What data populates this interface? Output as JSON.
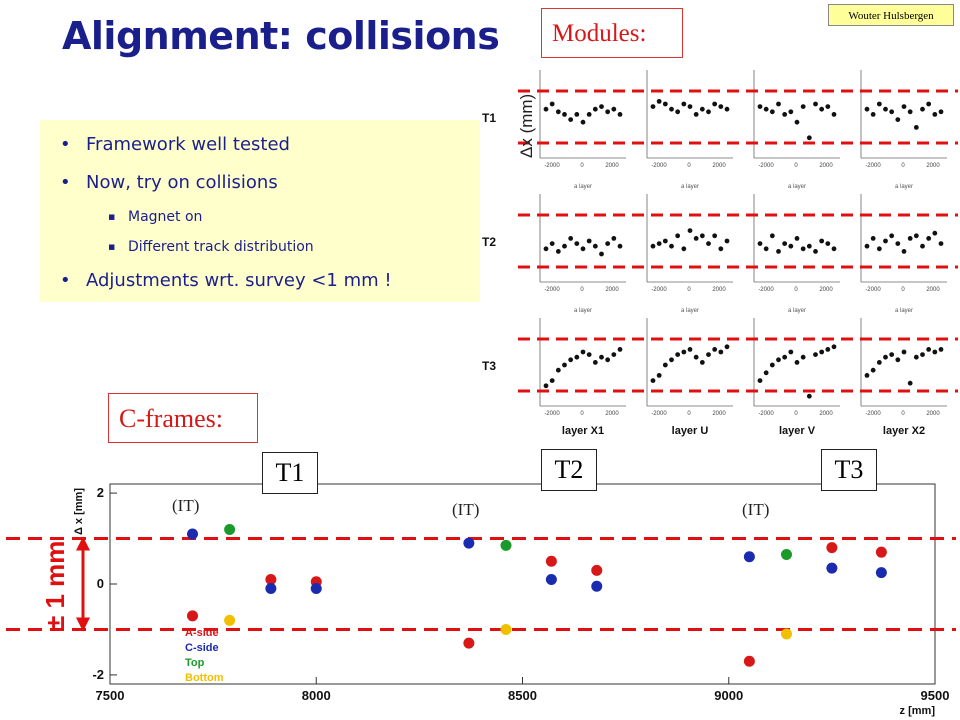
{
  "author": "Wouter Hulsbergen",
  "title": "Alignment: collisions",
  "bullets": [
    {
      "level": 1,
      "text": "Framework well tested"
    },
    {
      "level": 1,
      "text": "Now, try on collisions"
    },
    {
      "level": 2,
      "text": "Magnet on"
    },
    {
      "level": 2,
      "text": "Different track distribution"
    },
    {
      "level": 1,
      "text": "Adjustments wrt. survey <1 mm !"
    }
  ],
  "labels": {
    "modules": "Modules:",
    "cframes": "C-frames:",
    "dx_mm_rotated": "Δx (mm)",
    "plus_minus": "± 1 mm",
    "t1": "T1",
    "t2": "T2",
    "t3": "T3",
    "it1": "(IT)",
    "it2": "(IT)",
    "it3": "(IT)"
  },
  "colors": {
    "title": "#1a1f8c",
    "bullet_text": "#1a1f8c",
    "bullet_bg": "#ffffcc",
    "red_accent": "#e01010",
    "a_side": "#d81818",
    "c_side": "#1b2bb0",
    "top": "#1a9a2a",
    "bottom": "#f0c000"
  },
  "chart_data": [
    {
      "type": "scatter",
      "name": "modules-grid",
      "station_labels": [
        "T1",
        "T2",
        "T3"
      ],
      "layer_labels": [
        "layer X1",
        "layer U",
        "layer V",
        "layer X2"
      ],
      "panel_title": "a layer",
      "x_ticks": [
        "-2000",
        "0",
        "2000"
      ],
      "band_mm": [
        -1,
        1
      ],
      "panels": [
        [
          [
            0.3,
            0.5,
            0.2,
            0.1,
            -0.1,
            0.1,
            -0.2,
            0.1,
            0.3,
            0.4,
            0.2,
            0.3,
            0.1
          ],
          [
            0.4,
            0.6,
            0.5,
            0.3,
            0.2,
            0.5,
            0.4,
            0.1,
            0.3,
            0.2,
            0.5,
            0.4,
            0.3
          ],
          [
            0.4,
            0.3,
            0.2,
            0.5,
            0.1,
            0.2,
            -0.2,
            0.4,
            -0.8,
            0.5,
            0.3,
            0.4,
            0.1
          ],
          [
            0.3,
            0.1,
            0.5,
            0.3,
            0.2,
            -0.1,
            0.4,
            0.2,
            -0.4,
            0.3,
            0.5,
            0.1,
            0.2
          ]
        ],
        [
          [
            -0.3,
            -0.1,
            -0.4,
            -0.2,
            0.1,
            -0.1,
            -0.3,
            0.0,
            -0.2,
            -0.5,
            -0.1,
            0.1,
            -0.2
          ],
          [
            -0.2,
            -0.1,
            0.0,
            -0.2,
            0.2,
            -0.3,
            0.4,
            0.1,
            0.2,
            -0.1,
            0.2,
            -0.3,
            0.0
          ],
          [
            -0.1,
            -0.3,
            0.2,
            -0.4,
            -0.1,
            -0.2,
            0.1,
            -0.3,
            -0.2,
            -0.4,
            0.0,
            -0.1,
            -0.3
          ],
          [
            -0.2,
            0.1,
            -0.3,
            0.0,
            0.2,
            -0.1,
            -0.4,
            0.1,
            0.2,
            -0.2,
            0.1,
            0.3,
            -0.1
          ]
        ],
        [
          [
            -0.8,
            -0.6,
            -0.2,
            0.0,
            0.2,
            0.3,
            0.5,
            0.4,
            0.1,
            0.3,
            0.2,
            0.4,
            0.6
          ],
          [
            -0.6,
            -0.4,
            0.0,
            0.2,
            0.4,
            0.5,
            0.6,
            0.3,
            0.1,
            0.4,
            0.6,
            0.5,
            0.7
          ],
          [
            -0.6,
            -0.3,
            0.0,
            0.2,
            0.3,
            0.5,
            0.1,
            0.3,
            -1.2,
            0.4,
            0.5,
            0.6,
            0.7
          ],
          [
            -0.4,
            -0.2,
            0.1,
            0.3,
            0.4,
            0.2,
            0.5,
            -0.7,
            0.3,
            0.4,
            0.6,
            0.5,
            0.6
          ]
        ]
      ]
    },
    {
      "type": "scatter",
      "name": "c-frames",
      "xlabel": "z [mm]",
      "ylabel": "Δ x [mm]",
      "xlim": [
        7500,
        9500
      ],
      "ylim": [
        -2.2,
        2.2
      ],
      "x_ticks": [
        "7500",
        "8000",
        "8500",
        "9000",
        "9500"
      ],
      "y_ticks": [
        "-2",
        "0",
        "2"
      ],
      "band": [
        -1,
        1
      ],
      "legend": [
        "A-side",
        "C-side",
        "Top",
        "Bottom"
      ],
      "legend_position": "bottom-left",
      "series": [
        {
          "name": "A-side",
          "x": [
            7700,
            7890,
            8000,
            8370,
            8570,
            8680,
            9050,
            9250,
            9370
          ],
          "y": [
            -0.7,
            0.1,
            0.05,
            -1.3,
            0.5,
            0.3,
            -1.7,
            0.8,
            0.7
          ]
        },
        {
          "name": "C-side",
          "x": [
            7700,
            7890,
            8000,
            8370,
            8570,
            8680,
            9050,
            9250,
            9370
          ],
          "y": [
            1.1,
            -0.1,
            -0.1,
            0.9,
            0.1,
            -0.05,
            0.6,
            0.35,
            0.25
          ]
        },
        {
          "name": "Top",
          "x": [
            7790,
            8460,
            9140
          ],
          "y": [
            1.2,
            0.85,
            0.65
          ]
        },
        {
          "name": "Bottom",
          "x": [
            7790,
            8460,
            9140
          ],
          "y": [
            -0.8,
            -1.0,
            -1.1
          ]
        }
      ]
    }
  ]
}
